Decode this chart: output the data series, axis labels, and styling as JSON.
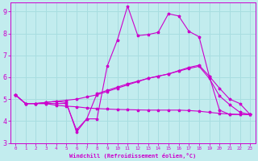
{
  "xlabel": "Windchill (Refroidissement éolien,°C)",
  "xlim": [
    -0.5,
    23.5
  ],
  "ylim": [
    3,
    9.4
  ],
  "yticks": [
    3,
    4,
    5,
    6,
    7,
    8,
    9
  ],
  "xticks": [
    0,
    1,
    2,
    3,
    4,
    5,
    6,
    7,
    8,
    9,
    10,
    11,
    12,
    13,
    14,
    15,
    16,
    17,
    18,
    19,
    20,
    21,
    22,
    23
  ],
  "background_color": "#c2ecee",
  "grid_color": "#a8dde0",
  "line_color": "#cc00cc",
  "line1_y": [
    5.2,
    4.8,
    4.8,
    4.8,
    4.8,
    4.8,
    3.6,
    4.1,
    4.1,
    6.5,
    7.7,
    9.25,
    7.9,
    7.95,
    8.05,
    8.9,
    8.8,
    8.1,
    7.85,
    6.05,
    4.5,
    4.3,
    4.3,
    4.3
  ],
  "line2_y": [
    5.2,
    4.8,
    4.8,
    4.85,
    4.9,
    4.95,
    5.0,
    5.1,
    5.2,
    5.35,
    5.5,
    5.65,
    5.8,
    5.95,
    6.05,
    6.15,
    6.3,
    6.45,
    6.55,
    6.05,
    5.5,
    5.0,
    4.8,
    4.3
  ],
  "line3_y": [
    5.2,
    4.8,
    4.8,
    4.85,
    4.9,
    4.85,
    3.5,
    4.1,
    5.25,
    5.4,
    5.55,
    5.7,
    5.82,
    5.95,
    6.05,
    6.15,
    6.28,
    6.4,
    6.5,
    5.95,
    5.15,
    4.75,
    4.4,
    4.3
  ],
  "line4_y": [
    5.2,
    4.8,
    4.8,
    4.8,
    4.72,
    4.68,
    4.65,
    4.6,
    4.57,
    4.55,
    4.53,
    4.52,
    4.51,
    4.5,
    4.5,
    4.5,
    4.5,
    4.48,
    4.45,
    4.4,
    4.35,
    4.32,
    4.3,
    4.3
  ]
}
